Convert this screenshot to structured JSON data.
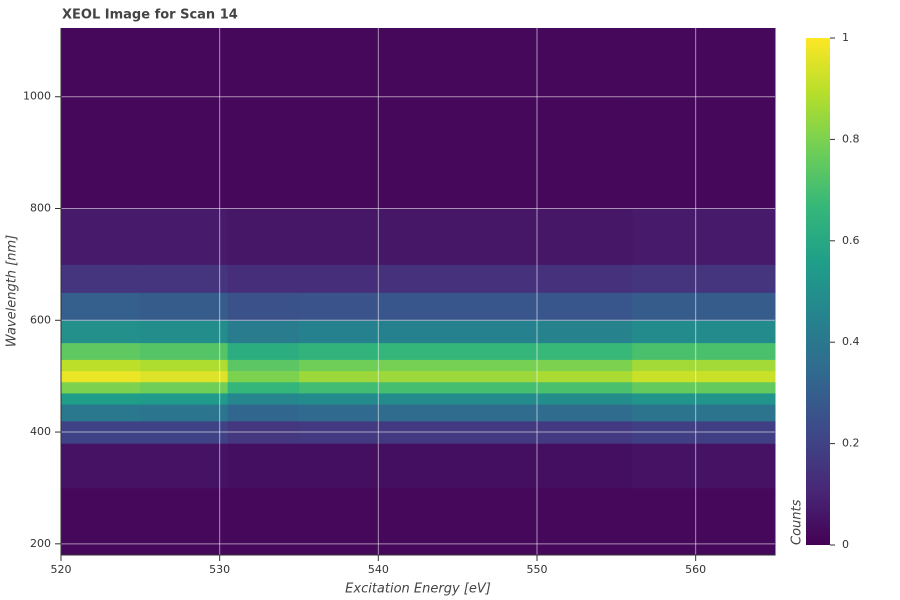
{
  "chart_data": {
    "type": "heatmap",
    "title": "XEOL Image for Scan 14",
    "x_label": "Excitation Energy [eV]",
    "y_label": "Wavelength [nm]",
    "colorbar_label": "Counts",
    "colormap": "viridis",
    "xbins": [
      520,
      525,
      530.5,
      535,
      540,
      550,
      556,
      565
    ],
    "ybins": [
      180,
      300,
      380,
      420,
      450,
      470,
      490,
      510,
      530,
      560,
      600,
      650,
      700,
      800,
      1123
    ],
    "z": [
      [
        0.02,
        0.02,
        0.02,
        0.02,
        0.02,
        0.02,
        0.02
      ],
      [
        0.05,
        0.05,
        0.04,
        0.04,
        0.04,
        0.04,
        0.05
      ],
      [
        0.2,
        0.2,
        0.16,
        0.17,
        0.17,
        0.17,
        0.19
      ],
      [
        0.4,
        0.39,
        0.33,
        0.34,
        0.35,
        0.35,
        0.38
      ],
      [
        0.55,
        0.54,
        0.46,
        0.48,
        0.48,
        0.49,
        0.52
      ],
      [
        0.8,
        0.78,
        0.66,
        0.69,
        0.7,
        0.71,
        0.76
      ],
      [
        0.97,
        0.95,
        0.8,
        0.85,
        0.85,
        0.87,
        0.92
      ],
      [
        0.9,
        0.88,
        0.74,
        0.78,
        0.79,
        0.8,
        0.86
      ],
      [
        0.75,
        0.73,
        0.62,
        0.65,
        0.66,
        0.67,
        0.71
      ],
      [
        0.5,
        0.49,
        0.42,
        0.44,
        0.44,
        0.45,
        0.48
      ],
      [
        0.3,
        0.29,
        0.25,
        0.26,
        0.27,
        0.27,
        0.29
      ],
      [
        0.15,
        0.15,
        0.13,
        0.13,
        0.14,
        0.14,
        0.15
      ],
      [
        0.07,
        0.07,
        0.06,
        0.06,
        0.06,
        0.06,
        0.07
      ],
      [
        0.02,
        0.02,
        0.02,
        0.02,
        0.02,
        0.02,
        0.02
      ]
    ],
    "xlim": [
      520,
      565
    ],
    "xticks": [
      520,
      530,
      540,
      550,
      560
    ],
    "ylim": [
      180,
      1123
    ],
    "yticks": [
      200,
      400,
      600,
      800,
      1000
    ],
    "clim": [
      0,
      1
    ],
    "cticks": [
      0,
      0.2,
      0.4,
      0.6,
      0.8,
      1
    ],
    "grid": true
  }
}
